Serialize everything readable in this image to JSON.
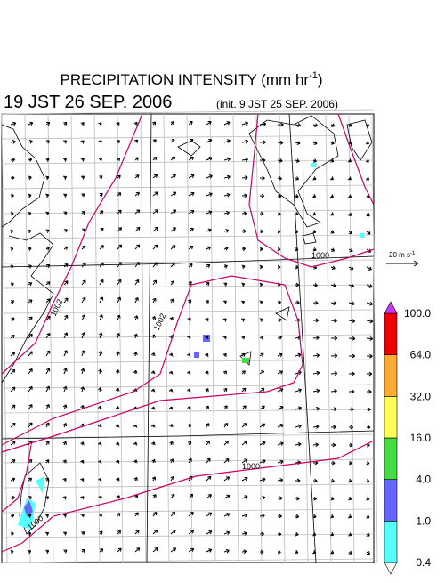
{
  "header": {
    "title": "PRECIPITATION INTENSITY (mm hr",
    "title_sup": "-1",
    "title_end": ")",
    "valid_time": "19 JST 26 SEP. 2006",
    "init_time": "(init. 9 JST 25 SEP. 2006)"
  },
  "vector_reference": {
    "label": "20 m s",
    "label_sup": "-1"
  },
  "colorbar": {
    "labels": [
      "0.4",
      "1.0",
      "4.0",
      "16.0",
      "32.0",
      "64.0",
      "100.0"
    ],
    "colors": [
      "#55ffff",
      "#6666ff",
      "#44dd44",
      "#ffff55",
      "#ffaa33",
      "#ee0000"
    ],
    "over_color": "#cc33ff",
    "under_color": "#ffffff"
  },
  "contour_labels": [
    "1002",
    "1002",
    "1000",
    "1000",
    "1000"
  ]
}
